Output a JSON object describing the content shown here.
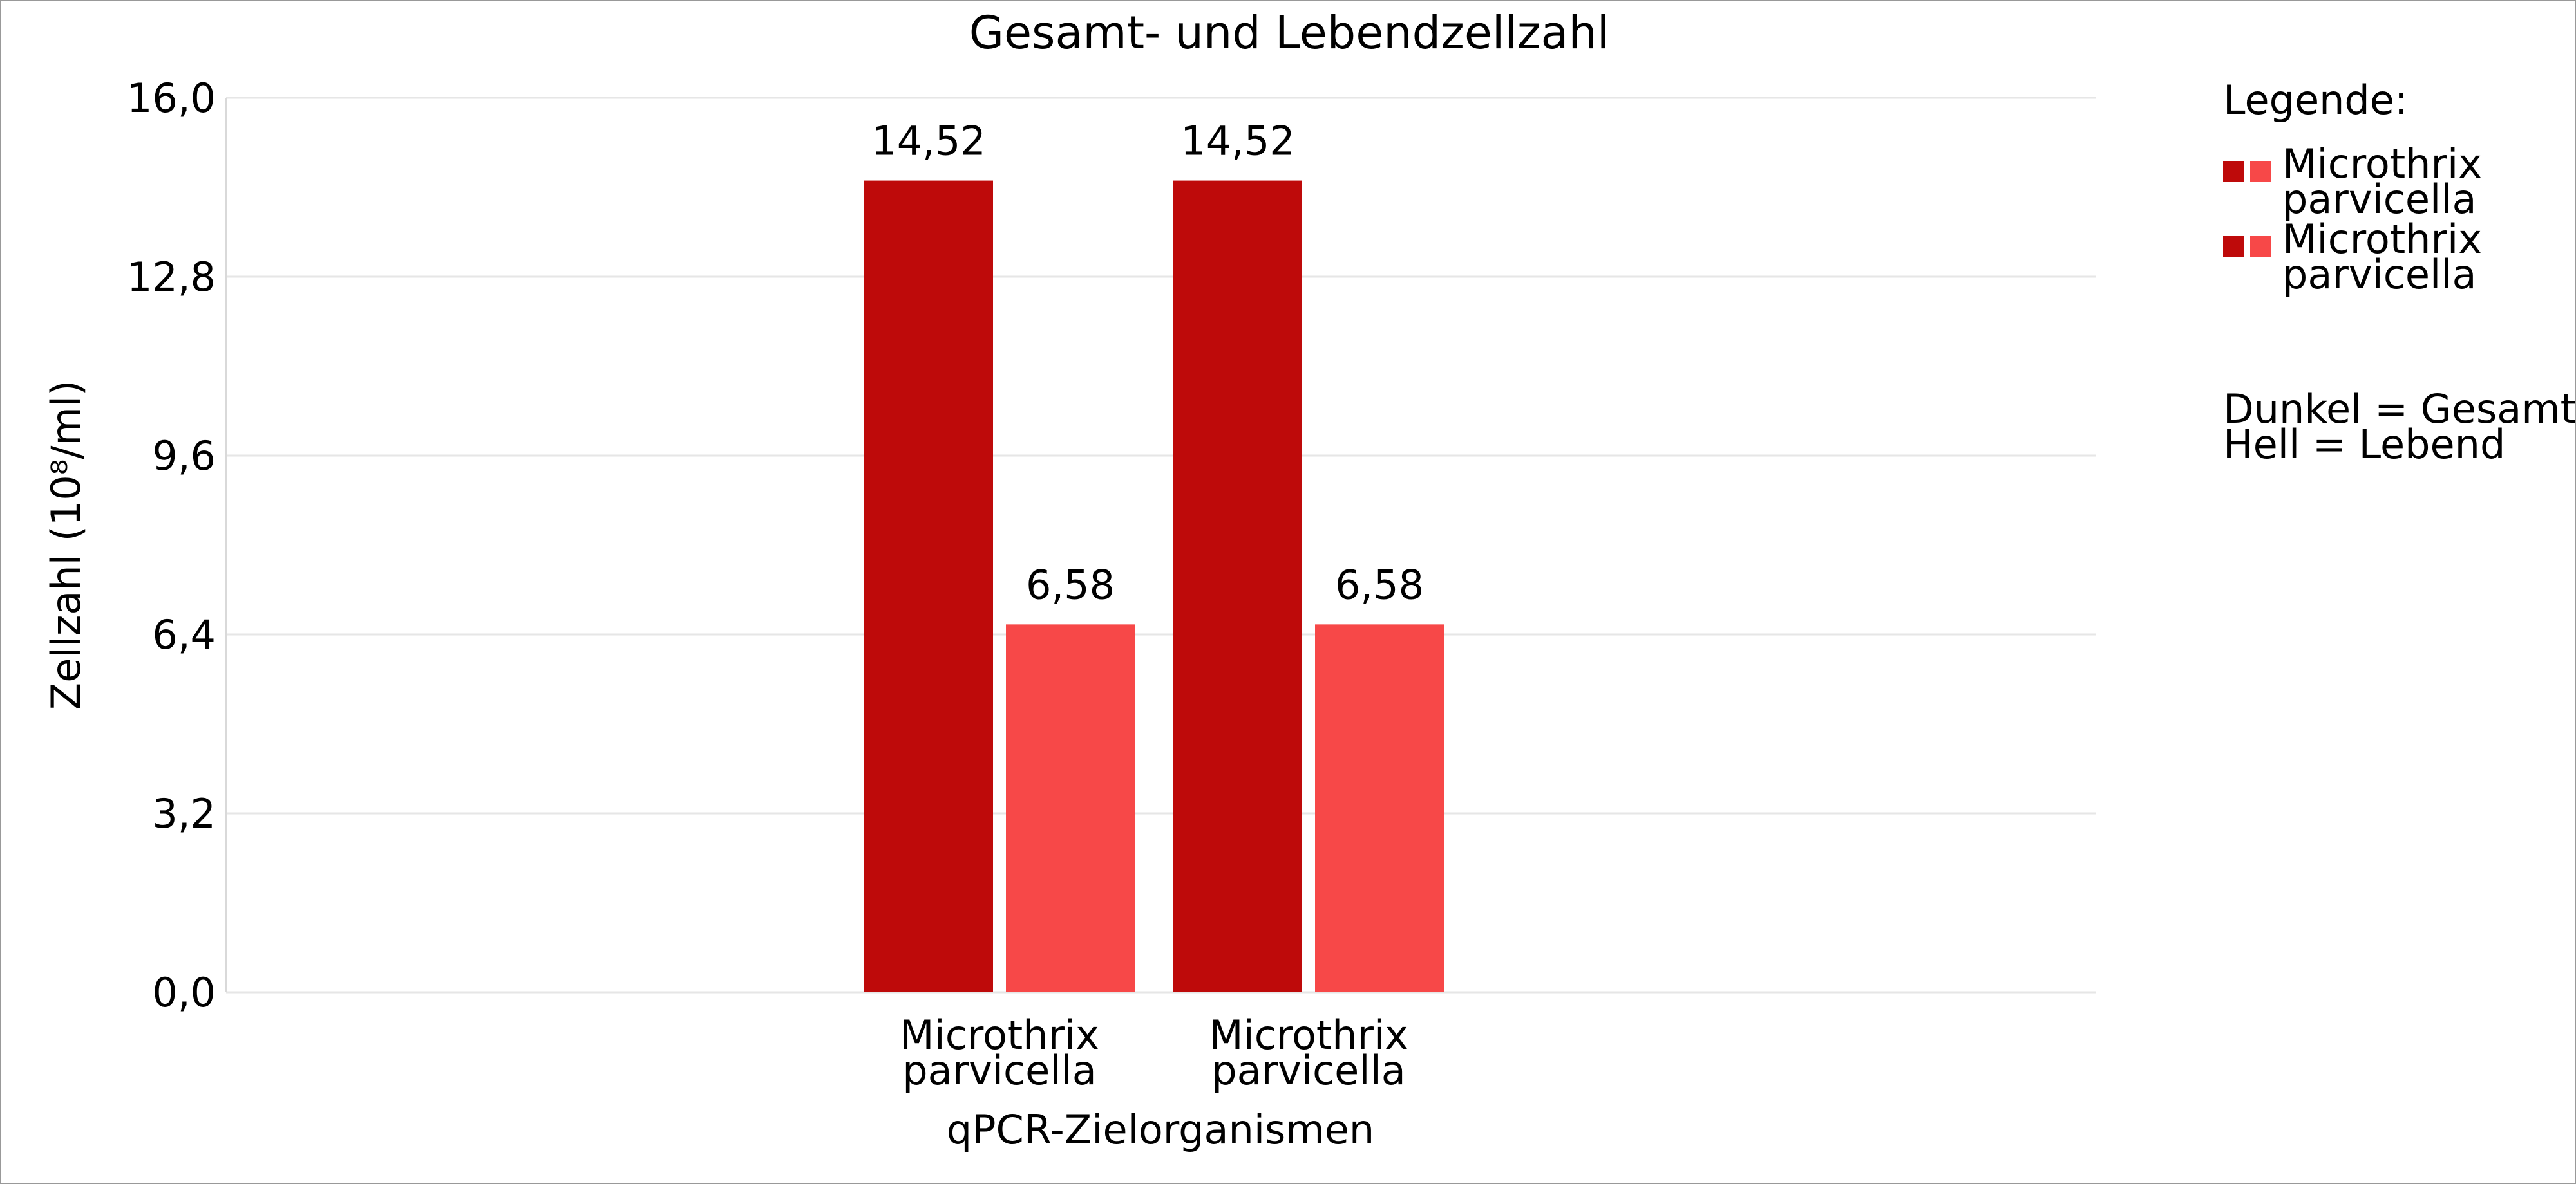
{
  "chart_data": {
    "type": "bar",
    "title": "Gesamt- und Lebendzellzahl",
    "xlabel": "qPCR-Zielorganismen",
    "ylabel": "Zellzahl (10⁸/ml)",
    "ylim": [
      0,
      16
    ],
    "yticks": [
      "0,0",
      "3,2",
      "6,4",
      "9,6",
      "12,8",
      "16,0"
    ],
    "grid": true,
    "categories": [
      [
        "Microthrix",
        "parvicella"
      ],
      [
        "Microthrix",
        "parvicella"
      ]
    ],
    "series": [
      {
        "values": [
          14.52,
          14.52
        ],
        "labels": [
          "14,52",
          "14,52"
        ],
        "color": "#BE0A0A"
      },
      {
        "values": [
          6.58,
          6.58
        ],
        "labels": [
          "6,58",
          "6,58"
        ],
        "color": "#F74848"
      }
    ],
    "legend": {
      "title": "Legende:",
      "placement": "right",
      "entries": [
        {
          "lines": [
            "Microthrix",
            "parvicella"
          ],
          "colors": [
            "#BE0A0A",
            "#F74848"
          ]
        },
        {
          "lines": [
            "Microthrix",
            "parvicella"
          ],
          "colors": [
            "#BE0A0A",
            "#F74848"
          ]
        }
      ],
      "note": [
        "Dunkel = Gesamt",
        "Hell = Lebend"
      ]
    }
  }
}
